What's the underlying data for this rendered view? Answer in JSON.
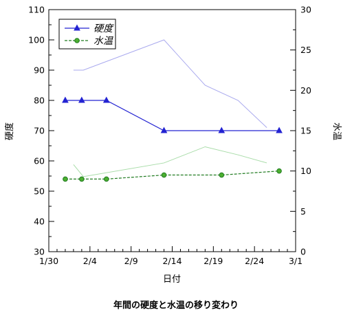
{
  "chart_data": {
    "type": "line",
    "title": "年間の硬度と水温の移り変わり",
    "xlabel": "日付",
    "ylabel_left": "硬度",
    "ylabel_right": "水温",
    "x_tick_labels": [
      "1/30",
      "2/4",
      "2/9",
      "2/14",
      "2/19",
      "2/24",
      "3/1"
    ],
    "x_tick_days": [
      0,
      5,
      10,
      15,
      20,
      25,
      30
    ],
    "xlim": [
      0,
      30
    ],
    "ylim_left": [
      30,
      110
    ],
    "ylim_right": [
      0,
      30
    ],
    "y_ticks_left": [
      30,
      40,
      50,
      60,
      70,
      80,
      90,
      100,
      110
    ],
    "y_ticks_right": [
      0,
      5,
      10,
      15,
      20,
      25,
      30
    ],
    "grid": false,
    "legend_position": "top-left",
    "series": [
      {
        "name": "硬度",
        "axis": "left",
        "color": "#2323d2",
        "style": "solid",
        "marker": "triangle",
        "x": [
          2,
          4,
          7,
          14,
          21,
          28
        ],
        "values": [
          80,
          80,
          80,
          70,
          70,
          70
        ]
      },
      {
        "name": "水温",
        "axis": "right",
        "color": "#1f7a1f",
        "style": "dashed",
        "marker": "circle",
        "x": [
          2,
          4,
          7,
          14,
          21,
          28
        ],
        "values": [
          9,
          9,
          9,
          9.5,
          9.5,
          10
        ]
      },
      {
        "axis": "left",
        "color": "#a9a9ee",
        "style": "solid",
        "marker": "none",
        "x": [
          3,
          4.2,
          14,
          19,
          23,
          26.5
        ],
        "values": [
          90,
          90,
          100,
          85,
          80,
          71
        ]
      },
      {
        "axis": "right",
        "color": "#a8dca8",
        "style": "solid",
        "marker": "none",
        "x": [
          3,
          4.2,
          14,
          19,
          23,
          26.5
        ],
        "values": [
          10.8,
          9.3,
          11,
          13,
          12,
          11
        ]
      }
    ]
  }
}
